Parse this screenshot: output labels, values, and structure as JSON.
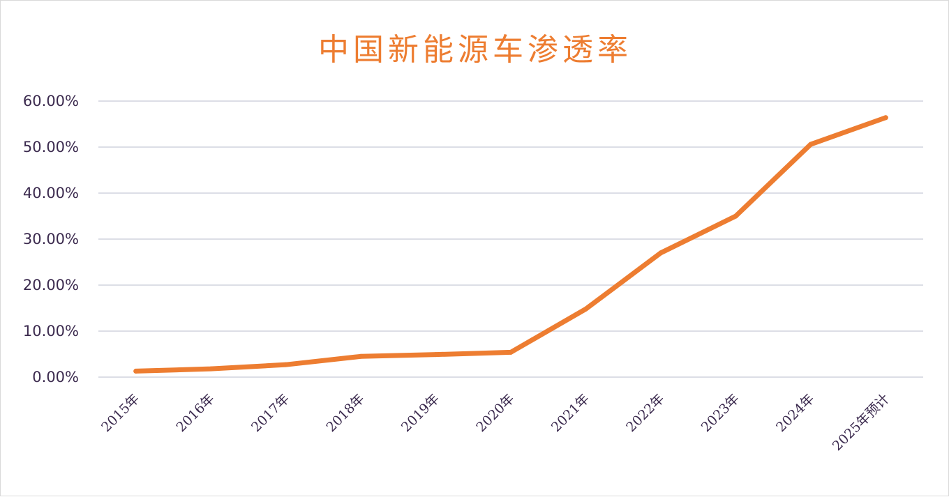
{
  "chart_data": {
    "type": "line",
    "title": "中国新能源车渗透率",
    "xlabel": "",
    "ylabel": "",
    "categories": [
      "2015年",
      "2016年",
      "2017年",
      "2018年",
      "2019年",
      "2020年",
      "2021年",
      "2022年",
      "2023年",
      "2024年",
      "2025年预计"
    ],
    "series": [
      {
        "values": [
          1.3,
          1.8,
          2.7,
          4.5,
          4.9,
          5.4,
          14.8,
          27.0,
          35.0,
          50.6,
          56.4
        ]
      }
    ],
    "y_ticks": [
      "0.00%",
      "10.00%",
      "20.00%",
      "30.00%",
      "40.00%",
      "50.00%",
      "60.00%"
    ],
    "ylim": [
      0,
      60
    ],
    "grid": true,
    "legend": "none",
    "line_color": "#ed7d31",
    "grid_color": "#c8cbd6"
  }
}
